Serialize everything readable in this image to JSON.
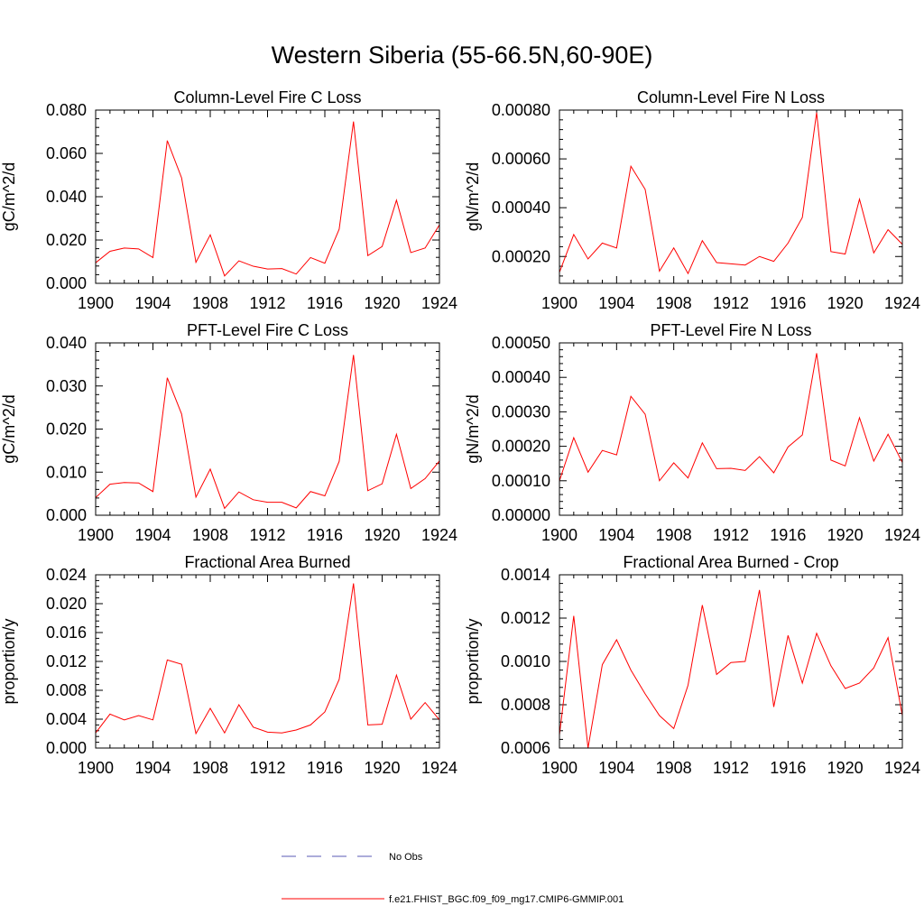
{
  "title": "Western Siberia (55-66.5N,60-90E)",
  "colors": {
    "series": "#ff0000",
    "no_obs": "#5a5ab4",
    "axis": "#000000"
  },
  "legend": {
    "entries": [
      {
        "label": "No Obs",
        "style": "dashed",
        "color": "#5a5ab4"
      },
      {
        "label": "f.e21.FHIST_BGC.f09_f09_mg17.CMIP6-GMMIP.001",
        "style": "solid",
        "color": "#ff0000"
      }
    ]
  },
  "chart_data": [
    {
      "type": "line",
      "title": "Column-Level Fire C Loss",
      "ylabel": "gC/m^2/d",
      "xlim": [
        1900,
        1924
      ],
      "ylim": [
        0,
        0.08
      ],
      "xticks": [
        1900,
        1904,
        1908,
        1912,
        1916,
        1920,
        1924
      ],
      "yticks": [
        0,
        0.02,
        0.04,
        0.06,
        0.08
      ],
      "ytick_labels": [
        "0.000",
        "0.020",
        "0.040",
        "0.060",
        "0.080"
      ],
      "x": [
        1900,
        1901,
        1902,
        1903,
        1904,
        1905,
        1906,
        1907,
        1908,
        1909,
        1910,
        1911,
        1912,
        1913,
        1914,
        1915,
        1916,
        1917,
        1918,
        1919,
        1920,
        1921,
        1922,
        1923,
        1924
      ],
      "series": [
        {
          "name": "f.e21.FHIST_BGC.f09_f09_mg17.CMIP6-GMMIP.001",
          "values": [
            0.0095,
            0.0148,
            0.0163,
            0.0159,
            0.0119,
            0.0659,
            0.0487,
            0.0097,
            0.0224,
            0.0034,
            0.0104,
            0.0079,
            0.0066,
            0.0068,
            0.0043,
            0.0119,
            0.0093,
            0.025,
            0.0747,
            0.0128,
            0.017,
            0.0384,
            0.0142,
            0.0163,
            0.027
          ]
        }
      ]
    },
    {
      "type": "line",
      "title": "Column-Level Fire N Loss",
      "ylabel": "gN/m^2/d",
      "xlim": [
        1900,
        1924
      ],
      "ylim": [
        9e-05,
        0.0008
      ],
      "xticks": [
        1900,
        1904,
        1908,
        1912,
        1916,
        1920,
        1924
      ],
      "yticks": [
        0.0002,
        0.0004,
        0.0006,
        0.0008
      ],
      "ytick_labels": [
        "0.00020",
        "0.00040",
        "0.00060",
        "0.00080"
      ],
      "x": [
        1900,
        1901,
        1902,
        1903,
        1904,
        1905,
        1906,
        1907,
        1908,
        1909,
        1910,
        1911,
        1912,
        1913,
        1914,
        1915,
        1916,
        1917,
        1918,
        1919,
        1920,
        1921,
        1922,
        1923,
        1924
      ],
      "series": [
        {
          "name": "f.e21.FHIST_BGC.f09_f09_mg17.CMIP6-GMMIP.001",
          "values": [
            0.000135,
            0.00029,
            0.00019,
            0.000255,
            0.000235,
            0.00057,
            0.000475,
            0.00014,
            0.000235,
            0.00013,
            0.000265,
            0.000175,
            0.00017,
            0.000165,
            0.0002,
            0.00018,
            0.000255,
            0.00036,
            0.00079,
            0.00022,
            0.00021,
            0.000435,
            0.000215,
            0.00031,
            0.00025
          ]
        }
      ]
    },
    {
      "type": "line",
      "title": "PFT-Level Fire C Loss",
      "ylabel": "gC/m^2/d",
      "xlim": [
        1900,
        1924
      ],
      "ylim": [
        0,
        0.04
      ],
      "xticks": [
        1900,
        1904,
        1908,
        1912,
        1916,
        1920,
        1924
      ],
      "yticks": [
        0,
        0.01,
        0.02,
        0.03,
        0.04
      ],
      "ytick_labels": [
        "0.000",
        "0.010",
        "0.020",
        "0.030",
        "0.040"
      ],
      "x": [
        1900,
        1901,
        1902,
        1903,
        1904,
        1905,
        1906,
        1907,
        1908,
        1909,
        1910,
        1911,
        1912,
        1913,
        1914,
        1915,
        1916,
        1917,
        1918,
        1919,
        1920,
        1921,
        1922,
        1923,
        1924
      ],
      "series": [
        {
          "name": "f.e21.FHIST_BGC.f09_f09_mg17.CMIP6-GMMIP.001",
          "values": [
            0.0041,
            0.0072,
            0.0076,
            0.0075,
            0.0055,
            0.0319,
            0.0235,
            0.0042,
            0.0107,
            0.0016,
            0.0054,
            0.0036,
            0.003,
            0.003,
            0.0017,
            0.0055,
            0.0045,
            0.0125,
            0.0372,
            0.0057,
            0.0073,
            0.0188,
            0.0062,
            0.0085,
            0.0126
          ]
        }
      ]
    },
    {
      "type": "line",
      "title": "PFT-Level Fire N Loss",
      "ylabel": "gN/m^2/d",
      "xlim": [
        1900,
        1924
      ],
      "ylim": [
        0,
        0.0005
      ],
      "xticks": [
        1900,
        1904,
        1908,
        1912,
        1916,
        1920,
        1924
      ],
      "yticks": [
        0,
        0.0001,
        0.0002,
        0.0003,
        0.0004,
        0.0005
      ],
      "ytick_labels": [
        "0.00000",
        "0.00010",
        "0.00020",
        "0.00030",
        "0.00040",
        "0.00050"
      ],
      "x": [
        1900,
        1901,
        1902,
        1903,
        1904,
        1905,
        1906,
        1907,
        1908,
        1909,
        1910,
        1911,
        1912,
        1913,
        1914,
        1915,
        1916,
        1917,
        1918,
        1919,
        1920,
        1921,
        1922,
        1923,
        1924
      ],
      "series": [
        {
          "name": "f.e21.FHIST_BGC.f09_f09_mg17.CMIP6-GMMIP.001",
          "values": [
            0.0001,
            0.000225,
            0.000125,
            0.000188,
            0.000175,
            0.000345,
            0.000293,
            0.0001,
            0.000152,
            0.000108,
            0.00021,
            0.000135,
            0.000136,
            0.00013,
            0.00017,
            0.000123,
            0.000198,
            0.000233,
            0.00047,
            0.00016,
            0.000143,
            0.000283,
            0.000157,
            0.000235,
            0.000153
          ]
        }
      ]
    },
    {
      "type": "line",
      "title": "Fractional Area Burned",
      "ylabel": "proportion/y",
      "xlim": [
        1900,
        1924
      ],
      "ylim": [
        0,
        0.024
      ],
      "xticks": [
        1900,
        1904,
        1908,
        1912,
        1916,
        1920,
        1924
      ],
      "yticks": [
        0,
        0.004,
        0.008,
        0.012,
        0.016,
        0.02,
        0.024
      ],
      "ytick_labels": [
        "0.000",
        "0.004",
        "0.008",
        "0.012",
        "0.016",
        "0.020",
        "0.024"
      ],
      "x": [
        1900,
        1901,
        1902,
        1903,
        1904,
        1905,
        1906,
        1907,
        1908,
        1909,
        1910,
        1911,
        1912,
        1913,
        1914,
        1915,
        1916,
        1917,
        1918,
        1919,
        1920,
        1921,
        1922,
        1923,
        1924
      ],
      "series": [
        {
          "name": "f.e21.FHIST_BGC.f09_f09_mg17.CMIP6-GMMIP.001",
          "values": [
            0.0021,
            0.0047,
            0.0039,
            0.0045,
            0.0039,
            0.0122,
            0.0116,
            0.002,
            0.0055,
            0.0021,
            0.006,
            0.0029,
            0.0022,
            0.0021,
            0.0025,
            0.0032,
            0.005,
            0.0095,
            0.0228,
            0.0032,
            0.0033,
            0.0101,
            0.004,
            0.0063,
            0.0039
          ]
        }
      ]
    },
    {
      "type": "line",
      "title": "Fractional Area Burned - Crop",
      "ylabel": "proportion/y",
      "xlim": [
        1900,
        1924
      ],
      "ylim": [
        0.0006,
        0.0014
      ],
      "xticks": [
        1900,
        1904,
        1908,
        1912,
        1916,
        1920,
        1924
      ],
      "yticks": [
        0.0006,
        0.0008,
        0.001,
        0.0012,
        0.0014
      ],
      "ytick_labels": [
        "0.0006",
        "0.0008",
        "0.0010",
        "0.0012",
        "0.0014"
      ],
      "x": [
        1900,
        1901,
        1902,
        1903,
        1904,
        1905,
        1906,
        1907,
        1908,
        1909,
        1910,
        1911,
        1912,
        1913,
        1914,
        1915,
        1916,
        1917,
        1918,
        1919,
        1920,
        1921,
        1922,
        1923,
        1924
      ],
      "series": [
        {
          "name": "f.e21.FHIST_BGC.f09_f09_mg17.CMIP6-GMMIP.001",
          "values": [
            0.00066,
            0.00121,
            0.0006,
            0.000985,
            0.0011,
            0.00096,
            0.00085,
            0.00075,
            0.00069,
            0.00089,
            0.00126,
            0.00094,
            0.000995,
            0.001,
            0.00133,
            0.00079,
            0.00112,
            0.0009,
            0.00113,
            0.00098,
            0.000875,
            0.0009,
            0.00097,
            0.00111,
            0.00075
          ]
        }
      ]
    }
  ]
}
